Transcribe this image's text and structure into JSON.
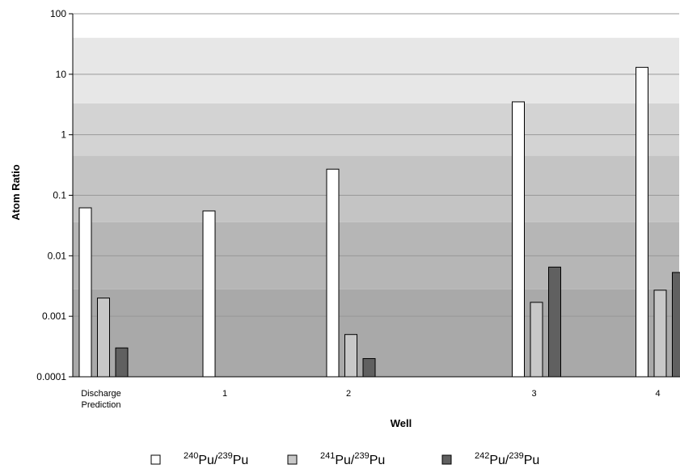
{
  "chart_data": {
    "type": "bar",
    "title": "",
    "xlabel": "Well",
    "ylabel": "Atom Ratio",
    "yscale": "log",
    "ylim": [
      0.0001,
      100
    ],
    "y_ticks": [
      "100",
      "10",
      "1",
      "0.1",
      "0.01",
      "0.001",
      "0.0001"
    ],
    "grid": true,
    "legend_position": "bottom",
    "categories": [
      [
        "Discharge",
        "Prediction"
      ],
      [
        "1"
      ],
      [
        "2"
      ],
      [
        "3"
      ],
      [
        "4"
      ]
    ],
    "category_x": [
      0,
      1,
      2,
      3.5,
      4.5
    ],
    "series": [
      {
        "num1": "240",
        "den": "239",
        "name_text": "Pu/",
        "name_tail": "Pu",
        "color": "#ffffff",
        "values": [
          0.062,
          0.055,
          0.27,
          3.5,
          13
        ]
      },
      {
        "num1": "241",
        "den": "239",
        "name_text": "Pu/",
        "name_tail": "Pu",
        "color": "#c8c8c8",
        "values": [
          0.002,
          null,
          0.0005,
          0.0017,
          0.0027
        ]
      },
      {
        "num1": "242",
        "den": "239",
        "name_text": "Pu/",
        "name_tail": "Pu",
        "color": "#606060",
        "values": [
          0.0003,
          null,
          0.0002,
          0.0065,
          0.0053
        ]
      }
    ],
    "bands": [
      {
        "from": 0.0001,
        "to": 0.0028,
        "color": "#a9a9a9"
      },
      {
        "from": 0.0028,
        "to": 0.036,
        "color": "#b6b6b6"
      },
      {
        "from": 0.036,
        "to": 0.45,
        "color": "#c4c4c4"
      },
      {
        "from": 0.45,
        "to": 3.3,
        "color": "#d3d3d3"
      },
      {
        "from": 3.3,
        "to": 40,
        "color": "#e7e7e7"
      }
    ]
  }
}
